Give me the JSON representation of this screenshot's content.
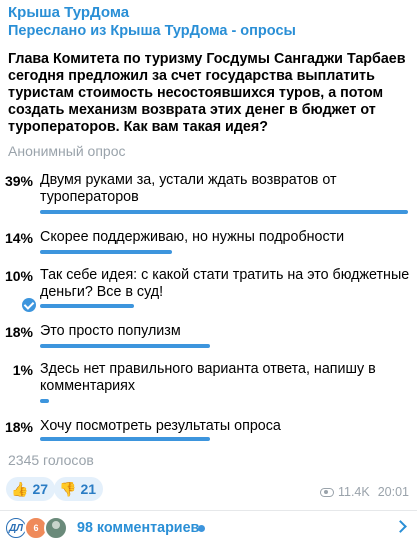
{
  "header": {
    "channel_name": "Крыша ТурДома",
    "forwarded_from": "Переслано из Крыша ТурДома - опросы"
  },
  "poll": {
    "question": "Глава Комитета по туризму Госдумы Сангаджи Тарбаев сегодня предложил за счет государства выплатить туристам стоимость несостоявшихся туров, а потом создать механизм возврата этих денег в бюджет от туроператоров. Как вам такая идея?",
    "type_label": "Анонимный опрос",
    "options": [
      {
        "percent": "39%",
        "value": 39,
        "text": "Двумя руками за, устали ждать возвратов от туроператоров",
        "chosen": false
      },
      {
        "percent": "14%",
        "value": 14,
        "text": "Скорее поддерживаю, но нужны подробности",
        "chosen": false
      },
      {
        "percent": "10%",
        "value": 10,
        "text": "Так себе идея: с какой стати тратить на это бюджетные деньги? Все в суд!",
        "chosen": true
      },
      {
        "percent": "18%",
        "value": 18,
        "text": "Это просто популизм",
        "chosen": false
      },
      {
        "percent": "1%",
        "value": 1,
        "text": "Здесь нет правильного варианта ответа, напишу в комментариях",
        "chosen": false
      },
      {
        "percent": "18%",
        "value": 18,
        "text": "Хочу посмотреть результаты опроса",
        "chosen": false
      }
    ],
    "votes_label": "2345 голосов"
  },
  "reactions": [
    {
      "emoji": "👍",
      "icon": "thumbs-up-icon",
      "count": "27"
    },
    {
      "emoji": "👎",
      "icon": "thumbs-down-icon",
      "count": "21"
    }
  ],
  "meta": {
    "views": "11.4K",
    "time": "20:01"
  },
  "comments": {
    "label": "98 комментариев",
    "avatar_badge": "6"
  },
  "colors": {
    "accent": "#3d95dd",
    "link": "#2a8fd6",
    "muted": "#9aa3ab"
  }
}
